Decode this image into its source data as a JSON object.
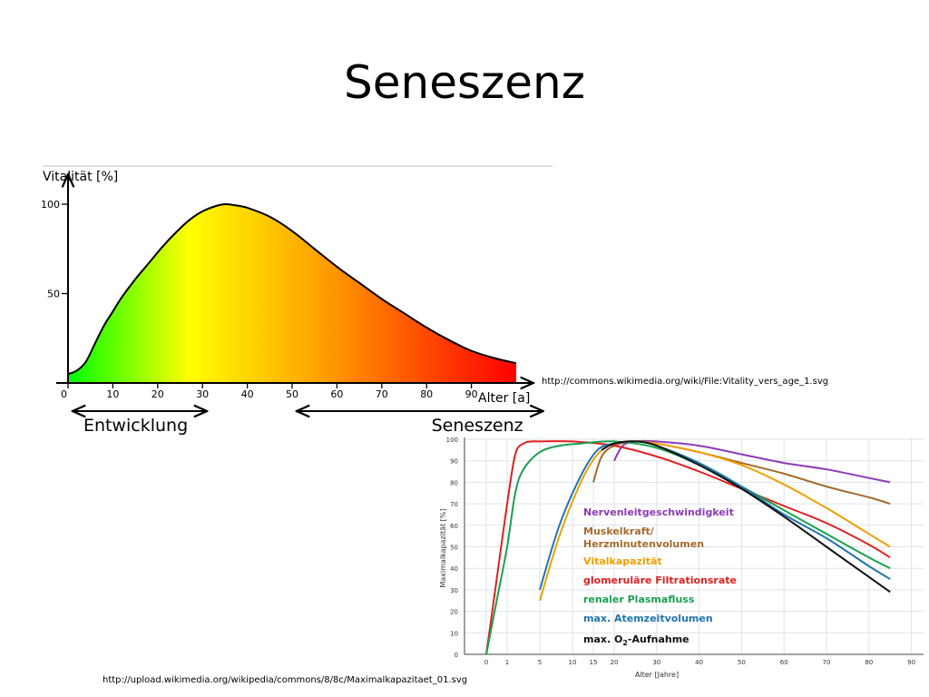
{
  "slide": {
    "title": "Seneszenz",
    "vitality_source": "http://commons.wikimedia.org/wiki/File:Vitality_vers_age_1.svg",
    "capacity_source": "http://upload.wikimedia.org/wikipedia/commons/8/8c/Maximalkapazitaet_01.svg"
  },
  "chart_data": [
    {
      "type": "area",
      "ylabel": "Vitalität [%]",
      "xlabel": "Alter [a]",
      "xlim": [
        0,
        100
      ],
      "ylim": [
        0,
        100
      ],
      "x_ticks": [
        0,
        10,
        20,
        30,
        40,
        50,
        60,
        70,
        80,
        90
      ],
      "y_ticks": [
        50,
        100
      ],
      "gradient_colors": [
        "#00ff00",
        "#ffff00",
        "#ffa500",
        "#ff0000"
      ],
      "series": [
        {
          "x": [
            0,
            2,
            4,
            6,
            8,
            10,
            12,
            15,
            18,
            21,
            24,
            27,
            30,
            33,
            35,
            37,
            40,
            45,
            50,
            55,
            60,
            65,
            70,
            75,
            80,
            85,
            90,
            95,
            100
          ],
          "values": [
            5,
            7,
            12,
            22,
            32,
            40,
            48,
            58,
            67,
            76,
            84,
            91,
            96,
            99,
            100,
            99.5,
            98,
            93,
            85,
            75,
            65,
            56,
            47,
            39,
            31,
            24,
            18,
            14,
            11
          ]
        }
      ],
      "phases": [
        {
          "label": "Entwicklung",
          "from": 1,
          "to": 31
        },
        {
          "label": "Seneszenz",
          "from": 51,
          "to": 106
        }
      ]
    },
    {
      "type": "line",
      "ylabel": "Maximalkapazität [%]",
      "xlabel": "Alter [Jahre]",
      "ylim": [
        0,
        100
      ],
      "x_ticks": [
        0,
        1,
        5,
        10,
        15,
        20,
        30,
        40,
        50,
        60,
        70,
        80,
        90
      ],
      "y_ticks": [
        0,
        10,
        20,
        30,
        40,
        50,
        60,
        70,
        80,
        90,
        100
      ],
      "legend_placement": "center-right",
      "series": [
        {
          "name": "Nervenleitgeschwindigkeit",
          "color": "#8e3bb8",
          "x": [
            20,
            22,
            25,
            30,
            40,
            50,
            60,
            70,
            80,
            85
          ],
          "values": [
            90,
            97,
            99,
            99,
            97,
            93,
            89,
            86,
            82,
            80
          ]
        },
        {
          "name": "Muskelkraft/ Herzminutenvolumen",
          "color": "#a56a2b",
          "x": [
            15,
            17,
            20,
            25,
            30,
            40,
            50,
            60,
            70,
            80,
            85
          ],
          "values": [
            80,
            92,
            97,
            99,
            98,
            94,
            89,
            84,
            78,
            73,
            70
          ]
        },
        {
          "name": "Vitalkapazität",
          "color": "#f0a000",
          "x": [
            5,
            8,
            12,
            16,
            20,
            25,
            30,
            40,
            50,
            60,
            70,
            80,
            85
          ],
          "values": [
            25,
            55,
            80,
            93,
            98,
            99,
            98,
            94,
            88,
            79,
            68,
            56,
            50
          ]
        },
        {
          "name": "glomeruläre Filtrationsrate",
          "color": "#e02020",
          "x": [
            0,
            0.5,
            1,
            2,
            3,
            4,
            5,
            10,
            20,
            30,
            40,
            50,
            60,
            70,
            80,
            85
          ],
          "values": [
            0,
            35,
            70,
            93,
            98,
            99,
            99,
            99,
            97,
            92,
            85,
            77,
            69,
            61,
            51,
            45
          ]
        },
        {
          "name": "renaler Plasmafluss",
          "color": "#1aa050",
          "x": [
            0,
            0.5,
            1,
            2,
            3,
            5,
            8,
            12,
            20,
            30,
            40,
            50,
            60,
            70,
            80,
            85
          ],
          "values": [
            0,
            25,
            50,
            75,
            86,
            94,
            97,
            98,
            99,
            96,
            88,
            78,
            67,
            56,
            45,
            40
          ]
        },
        {
          "name": "max. Atemzeitvolumen",
          "color": "#1f75ae",
          "x": [
            5,
            8,
            12,
            16,
            20,
            25,
            30,
            40,
            50,
            60,
            70,
            80,
            85
          ],
          "values": [
            30,
            60,
            83,
            95,
            98,
            99,
            97,
            89,
            78,
            65,
            54,
            41,
            35
          ]
        },
        {
          "name": "max. O",
          "sub": "2",
          "suffix": "-Aufnahme",
          "color": "#111111",
          "x": [
            17,
            20,
            25,
            30,
            40,
            50,
            60,
            70,
            80,
            85
          ],
          "values": [
            95,
            98,
            99,
            97,
            88,
            77,
            64,
            50,
            36,
            29
          ]
        }
      ]
    }
  ]
}
